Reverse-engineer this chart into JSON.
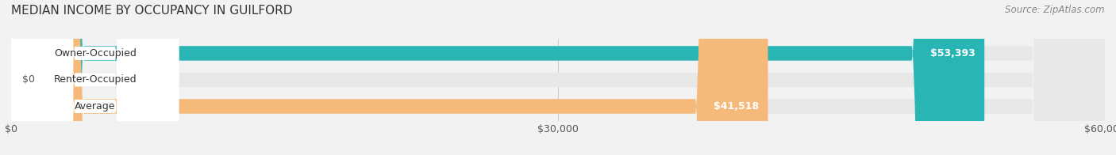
{
  "title": "MEDIAN INCOME BY OCCUPANCY IN GUILFORD",
  "source": "Source: ZipAtlas.com",
  "categories": [
    "Owner-Occupied",
    "Renter-Occupied",
    "Average"
  ],
  "values": [
    53393,
    0,
    41518
  ],
  "bar_colors": [
    "#2ab5b5",
    "#c8a8d8",
    "#f5b97a"
  ],
  "bar_labels": [
    "$53,393",
    "$0",
    "$41,518"
  ],
  "label_inside": [
    true,
    false,
    true
  ],
  "xlim": [
    0,
    60000
  ],
  "xticks": [
    0,
    30000,
    60000
  ],
  "xticklabels": [
    "$0",
    "$30,000",
    "$60,000"
  ],
  "background_color": "#f2f2f2",
  "bar_bg_color": "#e8e8e8",
  "bar_height": 0.55,
  "title_fontsize": 11,
  "source_fontsize": 8.5,
  "label_fontsize": 9,
  "tick_fontsize": 9,
  "cat_fontsize": 9
}
